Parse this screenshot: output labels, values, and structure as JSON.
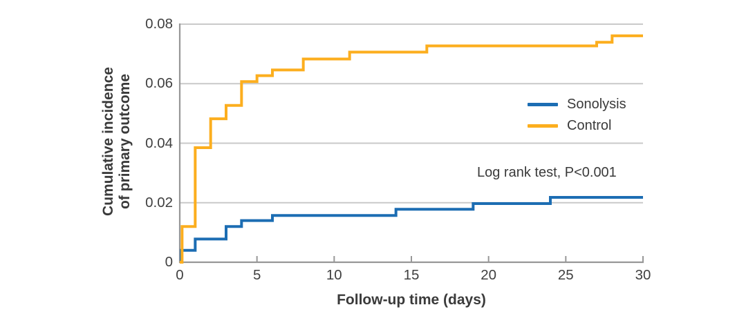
{
  "figure": {
    "y_axis": {
      "title_line1": "Cumulative incidence",
      "title_line2": "of primary outcome",
      "ticks": [
        "0",
        "0.02",
        "0.04",
        "0.06",
        "0.08"
      ]
    },
    "x_axis": {
      "title": "Follow-up time (days)",
      "ticks": [
        "0",
        "5",
        "10",
        "15",
        "20",
        "25",
        "30"
      ]
    },
    "legend": [
      {
        "label": "Sonolysis"
      },
      {
        "label": "Control"
      }
    ],
    "annotation": "Log rank test, P<0.001"
  },
  "chart_data": {
    "type": "line",
    "subtype": "step-cumulative-incidence",
    "title": "",
    "xlabel": "Follow-up time (days)",
    "ylabel": "Cumulative incidence of primary outcome",
    "xlim": [
      0,
      30
    ],
    "ylim": [
      0,
      0.08
    ],
    "x_ticks": [
      0,
      5,
      10,
      15,
      20,
      25,
      30
    ],
    "y_ticks": [
      0,
      0.02,
      0.04,
      0.06,
      0.08
    ],
    "grid": "horizontal",
    "legend_position": "right-middle",
    "annotation": "Log rank test, P<0.001",
    "colors": {
      "axis": "#979797",
      "gridline": "#c9c9c9",
      "text": "#3a3a3a"
    },
    "series": [
      {
        "name": "Sonolysis",
        "color": "#1c6db3",
        "steps": [
          [
            0,
            0
          ],
          [
            0.1,
            0.004
          ],
          [
            1,
            0.0078
          ],
          [
            3,
            0.012
          ],
          [
            4,
            0.014
          ],
          [
            6,
            0.0157
          ],
          [
            14,
            0.0178
          ],
          [
            19,
            0.0197
          ],
          [
            24,
            0.0218
          ],
          [
            30,
            0.0218
          ]
        ]
      },
      {
        "name": "Control",
        "color": "#fcae1e",
        "steps": [
          [
            0,
            0
          ],
          [
            0.15,
            0.012
          ],
          [
            1,
            0.0385
          ],
          [
            2,
            0.0482
          ],
          [
            3,
            0.0527
          ],
          [
            4,
            0.0607
          ],
          [
            5,
            0.0627
          ],
          [
            6,
            0.0646
          ],
          [
            8,
            0.0683
          ],
          [
            11,
            0.0706
          ],
          [
            16,
            0.0727
          ],
          [
            27,
            0.0739
          ],
          [
            28,
            0.0761
          ],
          [
            30,
            0.0761
          ]
        ]
      }
    ]
  }
}
